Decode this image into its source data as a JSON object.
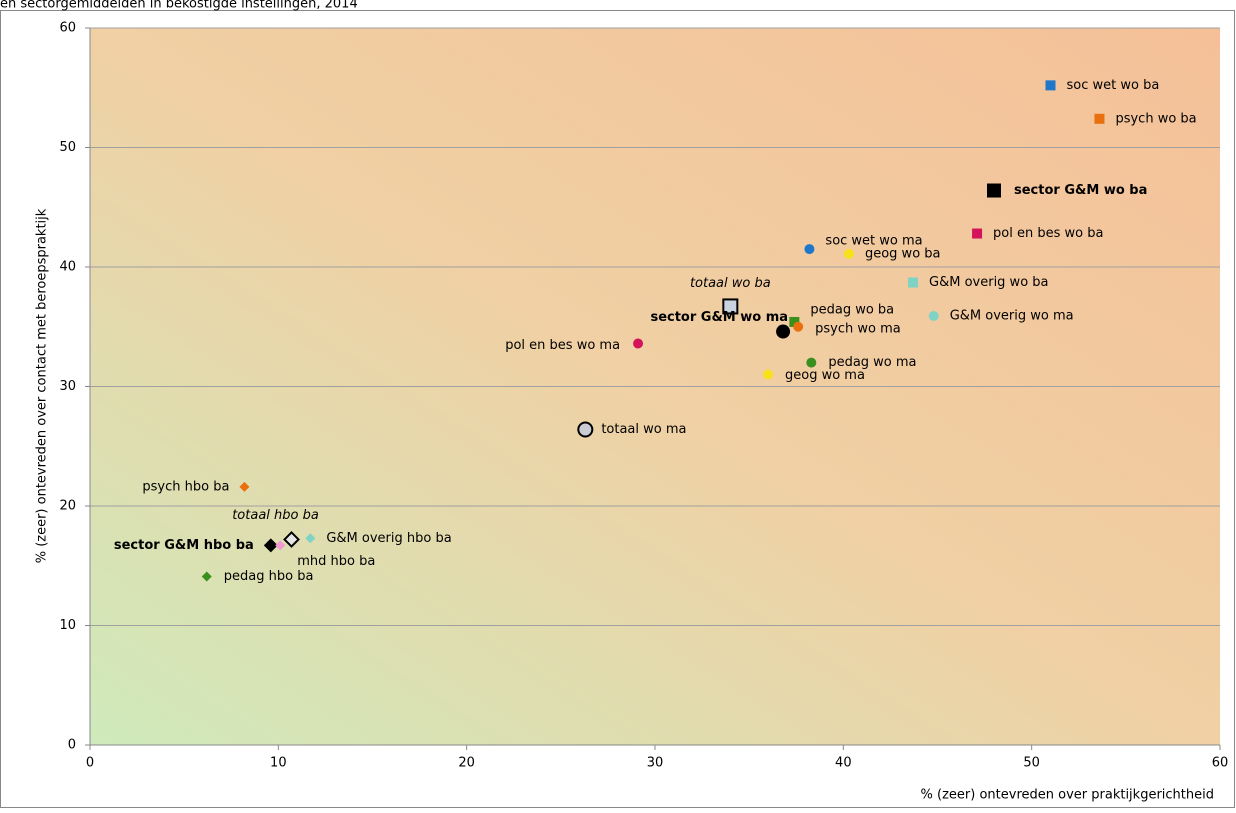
{
  "chart_data": {
    "type": "scatter",
    "title": "en sectorgemiddelden in bekostigde instellingen, 2014",
    "xlabel": "% (zeer) ontevreden over praktijkgerichtheid",
    "ylabel": "% (zeer) ontevreden over contact met beroepspraktijk",
    "xlim": [
      0,
      60
    ],
    "xticks": [
      0,
      10,
      20,
      30,
      40,
      50,
      60
    ],
    "ylim": [
      0,
      60
    ],
    "yticks": [
      0,
      10,
      20,
      30,
      40,
      50,
      60
    ],
    "grid": "y",
    "series": [
      {
        "name": "soc wet wo ba",
        "color": "#1f77c9",
        "marker": "square",
        "x": [
          51.0
        ],
        "values": [
          55.2
        ]
      },
      {
        "name": "psych wo ba",
        "color": "#e8700e",
        "marker": "square",
        "x": [
          53.6
        ],
        "values": [
          52.4
        ]
      },
      {
        "name": "sector G&M wo ba",
        "color": "#000000",
        "marker": "square",
        "label_style": "bold",
        "x": [
          48.0
        ],
        "values": [
          46.4
        ]
      },
      {
        "name": "pol en bes wo ba",
        "color": "#d4145a",
        "marker": "square",
        "x": [
          47.1
        ],
        "values": [
          42.8
        ]
      },
      {
        "name": "soc wet wo ma",
        "color": "#1f77c9",
        "marker": "circle",
        "x": [
          38.2
        ],
        "values": [
          41.5
        ]
      },
      {
        "name": "geog wo ba",
        "color": "#f7e11a",
        "marker": "circle",
        "x": [
          40.3
        ],
        "values": [
          41.1
        ]
      },
      {
        "name": "G&M overig wo ba",
        "color": "#7fd3c4",
        "marker": "square",
        "x": [
          43.7
        ],
        "values": [
          38.7
        ]
      },
      {
        "name": "totaal wo ba",
        "color": "#c9d3e0",
        "edgecolor": "#000000",
        "marker": "square",
        "label_style": "italic",
        "x": [
          34.0
        ],
        "values": [
          36.7
        ]
      },
      {
        "name": "G&M overig wo ma",
        "color": "#7fd3c4",
        "marker": "circle",
        "x": [
          44.8
        ],
        "values": [
          35.9
        ]
      },
      {
        "name": "pedag wo ba",
        "color": "#3a8f1d",
        "marker": "square",
        "x": [
          37.4
        ],
        "values": [
          35.4
        ]
      },
      {
        "name": "psych wo ma",
        "color": "#e8700e",
        "marker": "circle",
        "x": [
          37.6
        ],
        "values": [
          35.0
        ]
      },
      {
        "name": "sector G&M wo ma",
        "color": "#000000",
        "marker": "circle",
        "label_style": "bold",
        "x": [
          36.8
        ],
        "values": [
          34.6
        ]
      },
      {
        "name": "pol en bes wo ma",
        "color": "#d4145a",
        "marker": "circle",
        "x": [
          29.1
        ],
        "values": [
          33.6
        ]
      },
      {
        "name": "pedag wo ma",
        "color": "#3a8f1d",
        "marker": "circle",
        "x": [
          38.3
        ],
        "values": [
          32.0
        ]
      },
      {
        "name": "geog wo ma",
        "color": "#f7e11a",
        "marker": "circle",
        "x": [
          36.0
        ],
        "values": [
          31.0
        ]
      },
      {
        "name": "totaal wo ma",
        "color": "#c9ccd3",
        "edgecolor": "#000000",
        "marker": "circle",
        "x": [
          26.3
        ],
        "values": [
          26.4
        ]
      },
      {
        "name": "psych hbo ba",
        "color": "#e8700e",
        "marker": "diamond",
        "x": [
          8.2
        ],
        "values": [
          21.6
        ]
      },
      {
        "name": "totaal hbo ba",
        "color": "#e6e6e6",
        "edgecolor": "#000000",
        "marker": "diamond",
        "label_style": "italic",
        "x": [
          10.7
        ],
        "values": [
          17.2
        ]
      },
      {
        "name": "sector G&M hbo ba",
        "color": "#000000",
        "marker": "diamond",
        "label_style": "bold",
        "x": [
          9.6
        ],
        "values": [
          16.7
        ]
      },
      {
        "name": "mhd hbo ba",
        "color": "#f29ad0",
        "marker": "diamond",
        "x": [
          10.1
        ],
        "values": [
          16.7
        ]
      },
      {
        "name": "G&M overig hbo ba",
        "color": "#7fd3c4",
        "marker": "diamond",
        "x": [
          11.7
        ],
        "values": [
          17.3
        ]
      },
      {
        "name": "pedag hbo ba",
        "color": "#3a8f1d",
        "marker": "diamond",
        "x": [
          6.2
        ],
        "values": [
          14.1
        ]
      }
    ]
  }
}
